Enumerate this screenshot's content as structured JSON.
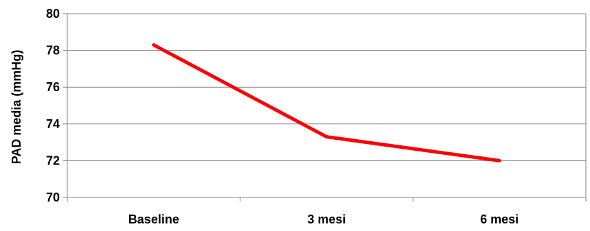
{
  "chart_data": {
    "type": "line",
    "title": "",
    "xlabel": "",
    "ylabel": "PAD media (mmHg)",
    "categories": [
      "Baseline",
      "3 mesi",
      "6 mesi"
    ],
    "series": [
      {
        "values": [
          78.3,
          73.3,
          72.0
        ],
        "color": "#ff0000"
      }
    ],
    "ylim": [
      70,
      80
    ],
    "yticks": [
      "70",
      "72",
      "74",
      "76",
      "78",
      "80"
    ],
    "grid": true,
    "legend": "none"
  }
}
